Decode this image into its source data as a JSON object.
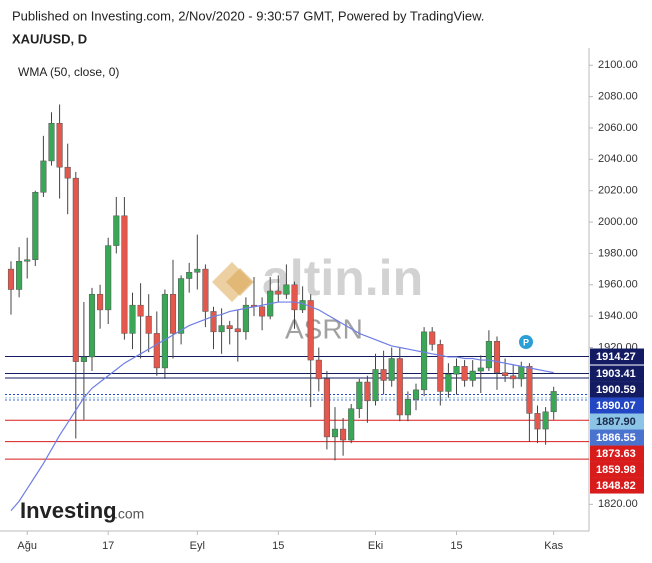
{
  "header": {
    "published": "Published on Investing.com, 2/Nov/2020 - 9:30:57 GMT, Powered by TradingView.",
    "symbol": "XAU/USD, D"
  },
  "watermark": {
    "brand": "altin.in",
    "sub": "ASRN"
  },
  "logo": {
    "brand": "Investing",
    "suffix": ".com"
  },
  "marker_label": "P",
  "chart_data": {
    "type": "candlestick",
    "categories": [
      null,
      null,
      "Ağu",
      null,
      null,
      null,
      null,
      null,
      null,
      null,
      null,
      null,
      "17",
      null,
      null,
      null,
      null,
      null,
      null,
      null,
      null,
      null,
      null,
      "Eyl",
      null,
      null,
      null,
      null,
      null,
      null,
      null,
      null,
      null,
      "15",
      null,
      null,
      null,
      null,
      null,
      null,
      null,
      null,
      null,
      null,
      null,
      "Eki",
      null,
      null,
      null,
      null,
      null,
      null,
      null,
      null,
      null,
      "15",
      null,
      null,
      null,
      null,
      null,
      null,
      null,
      null,
      null,
      null,
      null,
      "Kas"
    ],
    "open": [
      1970,
      1957,
      1975,
      1976,
      2019,
      2039,
      2063,
      2035,
      2028,
      1911,
      1914,
      1954,
      1944,
      1985,
      2004,
      1929,
      1947,
      1940,
      1929,
      1907,
      1954,
      1929,
      1964,
      1968,
      1970,
      1943,
      1930,
      1934,
      1932,
      1930,
      1947,
      1946,
      1940,
      1956,
      1954,
      1960,
      1944,
      1950,
      1912,
      1900,
      1863,
      1868,
      1861,
      1881,
      1898,
      1886,
      1906,
      1899,
      1913,
      1877,
      1887,
      1893,
      1930,
      1922,
      1892,
      1903,
      1908,
      1899,
      1905,
      1907,
      1924,
      1904,
      1902,
      1900,
      1908,
      1878,
      1868,
      1879
    ],
    "high": [
      1975,
      1984,
      1990,
      2020,
      2055,
      2070,
      2075,
      2050,
      2032,
      1949,
      1958,
      1960,
      1990,
      2016,
      2016,
      1955,
      1961,
      1954,
      1943,
      1957,
      1976,
      1966,
      1974,
      1992,
      1973,
      1946,
      1945,
      1937,
      1944,
      1952,
      1965,
      1952,
      1965,
      1966,
      1973,
      1962,
      1959,
      1954,
      1920,
      1905,
      1882,
      1875,
      1884,
      1900,
      1902,
      1916,
      1918,
      1920,
      1920,
      1892,
      1897,
      1933,
      1933,
      1925,
      1910,
      1913,
      1912,
      1912,
      1915,
      1931,
      1927,
      1913,
      1909,
      1911,
      1910,
      1883,
      1882,
      1895
    ],
    "low": [
      1941,
      1952,
      1964,
      1972,
      2016,
      2036,
      2015,
      2005,
      1862,
      1874,
      1905,
      1932,
      1935,
      1980,
      1925,
      1919,
      1913,
      1917,
      1902,
      1900,
      1913,
      1922,
      1955,
      1957,
      1933,
      1919,
      1916,
      1922,
      1911,
      1925,
      1940,
      1931,
      1938,
      1949,
      1951,
      1932,
      1942,
      1882,
      1892,
      1855,
      1848,
      1851,
      1859,
      1875,
      1872,
      1883,
      1890,
      1895,
      1873,
      1873,
      1880,
      1889,
      1918,
      1883,
      1888,
      1890,
      1895,
      1895,
      1891,
      1905,
      1893,
      1898,
      1894,
      1895,
      1860,
      1859,
      1858,
      1874
    ],
    "close": [
      1957,
      1975,
      1976,
      2019,
      2039,
      2063,
      2035,
      2028,
      1911,
      1914,
      1954,
      1944,
      1985,
      2004,
      1929,
      1947,
      1940,
      1929,
      1907,
      1954,
      1929,
      1964,
      1968,
      1970,
      1943,
      1930,
      1934,
      1932,
      1930,
      1947,
      1946,
      1940,
      1956,
      1954,
      1960,
      1944,
      1950,
      1912,
      1900,
      1863,
      1868,
      1861,
      1881,
      1898,
      1886,
      1906,
      1899,
      1913,
      1877,
      1887,
      1893,
      1930,
      1922,
      1892,
      1903,
      1908,
      1899,
      1905,
      1907,
      1924,
      1904,
      1902,
      1900,
      1908,
      1878,
      1868,
      1879,
      1892
    ],
    "up_color": "#3aa757",
    "down_color": "#e4574c",
    "series": [
      {
        "name": "WMA (50, close, 0)",
        "color": "#6f7ee6",
        "values": [
          1816,
          1822,
          1830,
          1838,
          1846,
          1855,
          1864,
          1872,
          1880,
          1888,
          1894,
          1898,
          1902,
          1906,
          1910,
          1913,
          1916,
          1919,
          1922,
          1925,
          1928,
          1931,
          1934,
          1936,
          1938,
          1940,
          1941,
          1943,
          1944,
          1945,
          1946,
          1947,
          1948,
          1949,
          1949,
          1949,
          1948,
          1946,
          1944,
          1941,
          1938,
          1935,
          1932,
          1929,
          1927,
          1925,
          1923,
          1921,
          1920,
          1919,
          1918,
          1917,
          1916,
          1915,
          1914,
          1914,
          1913,
          1913,
          1912,
          1912,
          1911,
          1910,
          1909,
          1908,
          1907,
          1906,
          1905,
          1904
        ]
      }
    ],
    "levels": [
      {
        "value": 1914.27,
        "color": "#131c63"
      },
      {
        "value": 1903.41,
        "color": "#131c63"
      },
      {
        "value": 1900.59,
        "color": "#131c63"
      },
      {
        "value": 1890.07,
        "color": "#2346c4"
      },
      {
        "value": 1887.9,
        "label": "1887.90",
        "color": "#8cc4e8"
      },
      {
        "value": 1886.55,
        "color": "#4a72cf"
      },
      {
        "value": 1873.63,
        "color": "#d81b1b"
      },
      {
        "value": 1859.98,
        "color": "#d81b1b"
      },
      {
        "value": 1848.82,
        "color": "#d81b1b"
      }
    ],
    "ylim": [
      1803,
      2111
    ],
    "yticks": [
      {
        "value": 2100,
        "label": "2100.00"
      },
      {
        "value": 2080,
        "label": "2080.00"
      },
      {
        "value": 2060,
        "label": "2060.00"
      },
      {
        "value": 2040,
        "label": "2040.00"
      },
      {
        "value": 2020,
        "label": "2020.00"
      },
      {
        "value": 2000,
        "label": "2000.00"
      },
      {
        "value": 1980,
        "label": "1980.00"
      },
      {
        "value": 1960,
        "label": "1960.00"
      },
      {
        "value": 1940,
        "label": "1940.00"
      },
      {
        "value": 1920,
        "label": "1920.00"
      },
      {
        "value": 1820,
        "label": "1820.00"
      }
    ]
  }
}
